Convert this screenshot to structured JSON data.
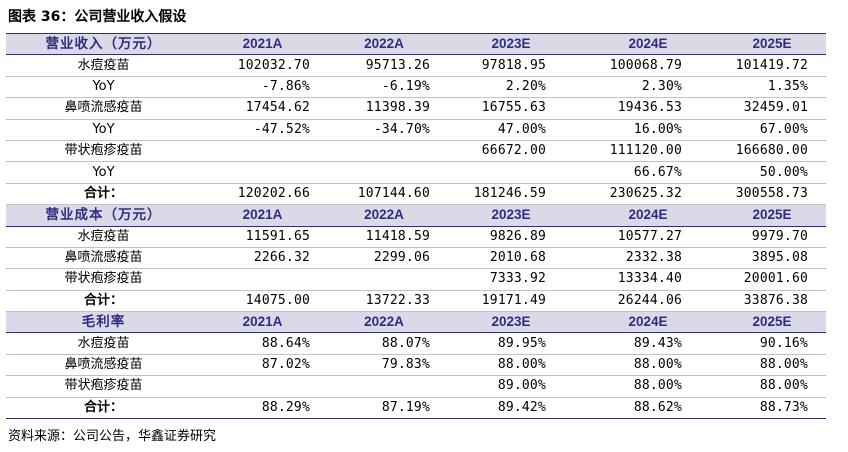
{
  "title": "图表 36：公司营业收入假设",
  "source": "资料来源：公司公告，华鑫证券研究",
  "colors": {
    "header_bg": "#dbd9e8",
    "header_text": "#2c2e80",
    "rule": "#2c2e80"
  },
  "sections": [
    {
      "header": [
        "营业收入（万元）",
        "2021A",
        "2022A",
        "2023E",
        "2024E",
        "2025E"
      ],
      "rows": [
        [
          "水痘疫苗",
          "102032.70",
          "95713.26",
          "97818.95",
          "100068.79",
          "101419.72"
        ],
        [
          "YoY",
          "-7.86%",
          "-6.19%",
          "2.20%",
          "2.30%",
          "1.35%"
        ],
        [
          "鼻喷流感疫苗",
          "17454.62",
          "11398.39",
          "16755.63",
          "19436.53",
          "32459.01"
        ],
        [
          "YoY",
          "-47.52%",
          "-34.70%",
          "47.00%",
          "16.00%",
          "67.00%"
        ],
        [
          "带状疱疹疫苗",
          "",
          "",
          "66672.00",
          "111120.00",
          "166680.00"
        ],
        [
          "YoY",
          "",
          "",
          "",
          "66.67%",
          "50.00%"
        ],
        [
          "合计：",
          "120202.66",
          "107144.60",
          "181246.59",
          "230625.32",
          "300558.73"
        ]
      ]
    },
    {
      "header": [
        "营业成本（万元）",
        "2021A",
        "2022A",
        "2023E",
        "2024E",
        "2025E"
      ],
      "rows": [
        [
          "水痘疫苗",
          "11591.65",
          "11418.59",
          "9826.89",
          "10577.27",
          "9979.70"
        ],
        [
          "鼻喷流感疫苗",
          "2266.32",
          "2299.06",
          "2010.68",
          "2332.38",
          "3895.08"
        ],
        [
          "带状疱疹疫苗",
          "",
          "",
          "7333.92",
          "13334.40",
          "20001.60"
        ],
        [
          "合计：",
          "14075.00",
          "13722.33",
          "19171.49",
          "26244.06",
          "33876.38"
        ]
      ]
    },
    {
      "header": [
        "毛利率",
        "2021A",
        "2022A",
        "2023E",
        "2024E",
        "2025E"
      ],
      "rows": [
        [
          "水痘疫苗",
          "88.64%",
          "88.07%",
          "89.95%",
          "89.43%",
          "90.16%"
        ],
        [
          "鼻喷流感疫苗",
          "87.02%",
          "79.83%",
          "88.00%",
          "88.00%",
          "88.00%"
        ],
        [
          "带状疱疹疫苗",
          "",
          "",
          "89.00%",
          "88.00%",
          "88.00%"
        ],
        [
          "合计：",
          "88.29%",
          "87.19%",
          "89.42%",
          "88.62%",
          "88.73%"
        ]
      ]
    }
  ]
}
